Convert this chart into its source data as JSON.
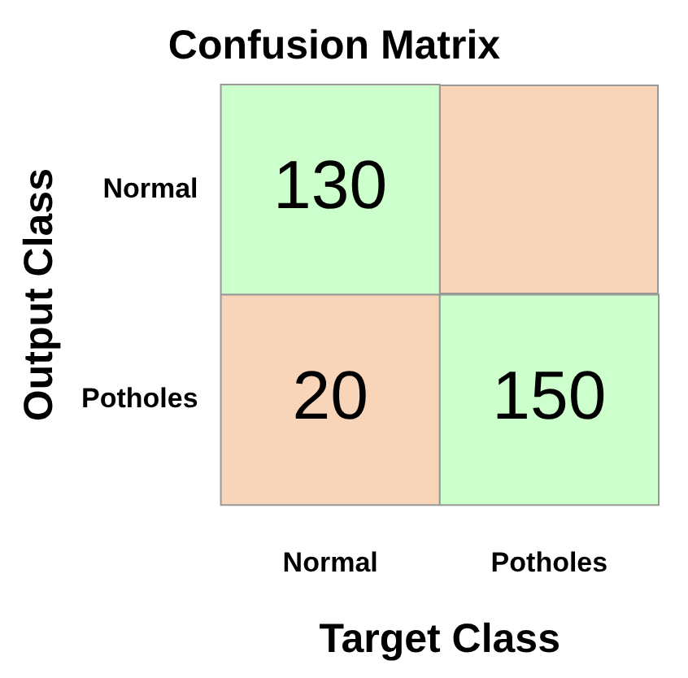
{
  "chart_data": {
    "type": "heatmap",
    "title": "Confusion Matrix",
    "xlabel": "Target Class",
    "ylabel": "Output Class",
    "categories": [
      "Normal",
      "Potholes"
    ],
    "y_categories": [
      "Normal",
      "Potholes"
    ],
    "cells": [
      [
        130,
        null
      ],
      [
        20,
        150
      ]
    ],
    "data_labels": true,
    "colors": [
      [
        "#ccffcc",
        "#f8d5b8"
      ],
      [
        "#f8d5b8",
        "#ccffcc"
      ]
    ]
  }
}
